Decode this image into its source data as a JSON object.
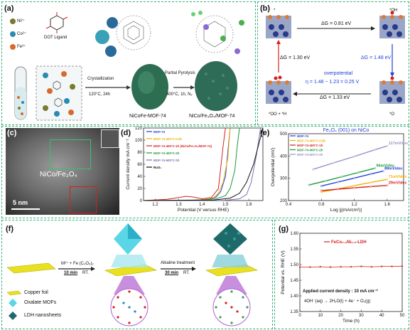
{
  "panels": {
    "a": {
      "label": "(a)",
      "legend": [
        "Ni²⁺",
        "Co²⁺",
        "Fe³⁺"
      ],
      "ligand_label": "DOT Ligand",
      "step1": {
        "name": "Crystallization",
        "cond": "120°C,  24h"
      },
      "step2": {
        "name": "Partial Pyrolysis",
        "cond": "400°C,  1h, N₂"
      },
      "product1": "NiCoFe-MOF-74",
      "product2": "NiCo/Fe₃O₄/MOF-74"
    },
    "b": {
      "label": "(b)",
      "states": [
        "*",
        "*OH",
        "*O",
        "*OO + *H"
      ],
      "dG1": "ΔG = 0.81 eV",
      "dG2": "ΔG = 1.48 eV",
      "dG3": "ΔG = 1.33 eV",
      "dG4": "ΔG = 1.30 eV",
      "overpotential_title": "overpotential",
      "overpotential_eq": "η = 1.48 − 1.23 = 0.25 V",
      "surface": "Fe₃O₄ (001) on NiCo"
    },
    "c": {
      "label": "(c)",
      "material": "NiCo/Fe₃O₄",
      "scale": "5 nm"
    },
    "d": {
      "label": "(d)"
    },
    "e": {
      "label": "(e)"
    },
    "f": {
      "label": "(f)",
      "step1_reagent": "M²⁺ + Fe (C₂O₄)₂",
      "step1_time": "10 min",
      "step1_temp": "RT.",
      "step2_name": "Alkaline treatment",
      "step2_time": "30 min",
      "step2_temp": "RT.",
      "legend": [
        "Copper foil",
        "Oxalate MOFs",
        "LDH nanosheets"
      ]
    },
    "g": {
      "label": "(g)",
      "annotation": "Applied current density : 10 mA cm⁻²",
      "reaction": "4OH⁻(aq) → 2H₂O(l) + 4e⁻ + O₂(g)"
    }
  },
  "chart_data": [
    {
      "panel": "d",
      "type": "line",
      "xlabel": "Potential (V versus RHE)",
      "ylabel": "Current density mA cm⁻²",
      "xlim": [
        1.15,
        1.66
      ],
      "ylim": [
        0,
        120
      ],
      "xticks": [
        "1.2",
        "1.3",
        "1.4",
        "1.5",
        "1.6"
      ],
      "yticks": [
        "0",
        "20",
        "40",
        "60",
        "80",
        "100",
        "120"
      ],
      "legend_position": "top-left",
      "series": [
        {
          "name": "MOF-74",
          "color": "#1f3fd6",
          "x": [
            1.15,
            1.35,
            1.4,
            1.44,
            1.46,
            1.48,
            1.5,
            1.51,
            1.52
          ],
          "y": [
            0,
            0.5,
            1.5,
            3,
            6,
            15,
            40,
            80,
            120
          ]
        },
        {
          "name": "MOF-74-400°C-0.5h",
          "color": "#f0b000",
          "x": [
            1.15,
            1.38,
            1.42,
            1.45,
            1.47,
            1.49,
            1.51,
            1.52
          ],
          "y": [
            0,
            1,
            2,
            5,
            12,
            30,
            70,
            120
          ]
        },
        {
          "name": "MOF-74-400°C-1h (NiCo/Fe₃O₄/MOF-74)",
          "color": "#d42020",
          "x": [
            1.15,
            1.25,
            1.3,
            1.33,
            1.36,
            1.4,
            1.44,
            1.47,
            1.48,
            1.49,
            1.5
          ],
          "y": [
            0,
            2,
            5,
            7,
            6,
            3,
            5,
            20,
            55,
            90,
            120
          ]
        },
        {
          "name": "MOF-74-400°C-2h",
          "color": "#1a9a3a",
          "x": [
            1.15,
            1.4,
            1.46,
            1.5,
            1.52,
            1.54,
            1.55,
            1.56
          ],
          "y": [
            0,
            1,
            3,
            8,
            20,
            50,
            90,
            120
          ]
        },
        {
          "name": "MOF-74-600°C-2h",
          "color": "#7a70b0",
          "x": [
            1.15,
            1.5,
            1.56,
            1.59,
            1.61,
            1.63,
            1.65
          ],
          "y": [
            0,
            0.5,
            3,
            10,
            30,
            70,
            120
          ]
        },
        {
          "name": "RuO₂",
          "color": "#111111",
          "x": [
            1.15,
            1.45,
            1.52,
            1.56,
            1.59,
            1.62,
            1.64,
            1.66
          ],
          "y": [
            0,
            1,
            4,
            12,
            30,
            60,
            90,
            120
          ]
        }
      ]
    },
    {
      "panel": "e",
      "type": "scatter",
      "title": "Fe₃O₄ (001) on NiCo",
      "xlabel": "Log |j(mA/cm²)|",
      "ylabel": "Overpotential (mV)",
      "xlim": [
        0.4,
        1.8
      ],
      "ylim": [
        200,
        500
      ],
      "xticks": [
        "0.4",
        "0.8",
        "1.2",
        "1.6"
      ],
      "yticks": [
        "200",
        "300",
        "400",
        "500"
      ],
      "legend_position": "top-left",
      "series": [
        {
          "name": "MOF-74",
          "color": "#1f3fd6",
          "slope_label": "89mV/dec",
          "x": [
            0.8,
            1.0,
            1.2,
            1.4,
            1.55
          ],
          "y": [
            265,
            283,
            301,
            319,
            332
          ]
        },
        {
          "name": "MOF-74-400°C-0.5h",
          "color": "#f0b000",
          "slope_label": "71mV/dec",
          "x": [
            0.8,
            1.0,
            1.2,
            1.4,
            1.6
          ],
          "y": [
            238,
            252,
            267,
            281,
            295
          ]
        },
        {
          "name": "MOF-74-400°C-1h",
          "color": "#d42020",
          "slope_label": "29mV/dec",
          "x": [
            0.8,
            1.0,
            1.2,
            1.4,
            1.6
          ],
          "y": [
            245,
            251,
            257,
            263,
            268
          ]
        },
        {
          "name": "MOF-74-400°C-2h",
          "color": "#1a9a3a",
          "slope_label": "94mV/dec",
          "x": [
            0.65,
            0.85,
            1.05,
            1.25,
            1.45
          ],
          "y": [
            270,
            288,
            307,
            326,
            345
          ]
        },
        {
          "name": "MOF-74-600°C-2h",
          "color": "#9a90c0",
          "slope_label": "117mV/dec",
          "x": [
            0.7,
            0.95,
            1.2,
            1.45,
            1.6
          ],
          "y": [
            340,
            369,
            398,
            428,
            445
          ]
        }
      ]
    },
    {
      "panel": "g",
      "type": "line",
      "xlabel": "Time (h)",
      "ylabel": "Potential vs. RHE (V)",
      "xlim": [
        0,
        50
      ],
      "ylim": [
        1.35,
        1.6
      ],
      "xticks": [
        "0",
        "10",
        "20",
        "30",
        "40",
        "50"
      ],
      "yticks": [
        "1.35",
        "1.40",
        "1.45",
        "1.50",
        "1.55",
        "1.60"
      ],
      "series": [
        {
          "name": "FeCo₀.₅Ni₀.₅-LDH",
          "color": "#d42020",
          "x": [
            0,
            5,
            10,
            15,
            20,
            25,
            30,
            35,
            40,
            45,
            50
          ],
          "y": [
            1.492,
            1.492,
            1.493,
            1.492,
            1.493,
            1.493,
            1.494,
            1.493,
            1.494,
            1.494,
            1.495
          ]
        }
      ]
    }
  ]
}
